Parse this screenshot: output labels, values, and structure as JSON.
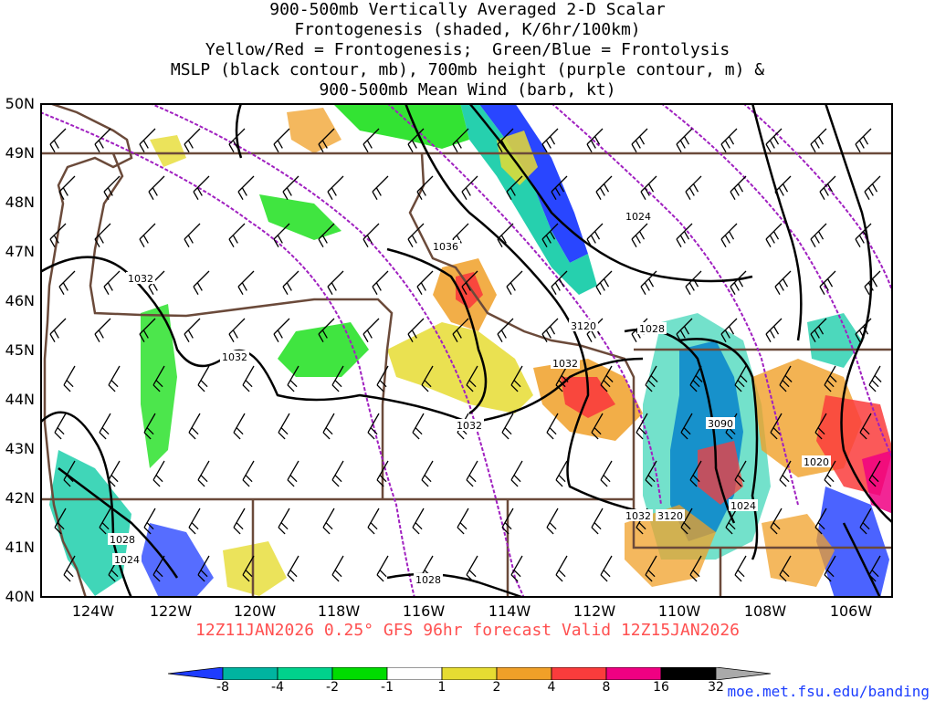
{
  "title_lines": [
    "900-500mb Vertically Averaged 2-D Scalar",
    "Frontogenesis (shaded, K/6hr/100km)",
    "Yellow/Red = Frontogenesis;  Green/Blue = Frontolysis",
    "MSLP (black contour, mb), 700mb height (purple contour, m) &",
    "900-500mb Mean Wind (barb, kt)"
  ],
  "map": {
    "lat_labels": [
      "50N",
      "49N",
      "48N",
      "47N",
      "46N",
      "45N",
      "44N",
      "43N",
      "42N",
      "41N",
      "40N"
    ],
    "lon_labels": [
      "124W",
      "122W",
      "120W",
      "118W",
      "116W",
      "114W",
      "112W",
      "110W",
      "108W",
      "106W"
    ],
    "lat_range": [
      40,
      50
    ],
    "lon_range": [
      -125,
      -105
    ],
    "mslp_labels": [
      "1032",
      "1032",
      "1036",
      "1032",
      "1032",
      "1028",
      "1024",
      "1028",
      "1024",
      "1024",
      "1020",
      "1032",
      "1028"
    ],
    "height_labels": [
      "3120",
      "3090",
      "3120"
    ],
    "colors": {
      "mslp": "#000000",
      "height": "#a020c0",
      "borders": "#6b4a3a",
      "barbs": "#000000"
    }
  },
  "footer": "12Z11JAN2026 0.25° GFS 96hr forecast Valid 12Z15JAN2026",
  "colorbar": {
    "labels": [
      "-8",
      "-4",
      "-2",
      "-1",
      "1",
      "2",
      "4",
      "8",
      "16",
      "32"
    ],
    "colors": [
      "#1e3cff",
      "#00b4a0",
      "#00d28c",
      "#00dc00",
      "#ffffff",
      "#e6dc32",
      "#f0a028",
      "#fa3c3c",
      "#f00082",
      "#000000",
      "#aaaaaa"
    ]
  },
  "credit": "moe.met.fsu.edu/banding"
}
